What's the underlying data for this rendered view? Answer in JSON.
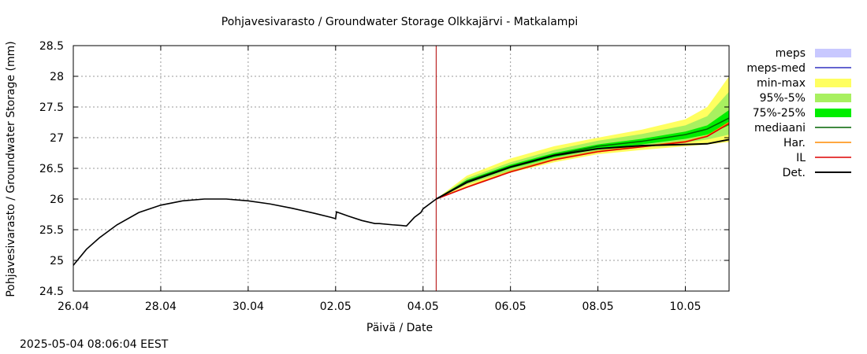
{
  "timestamp": "2025-05-04 08:06:04 EEST",
  "colors": {
    "meps": "#c8c8ff",
    "meps_med": "#3030c0",
    "minmax": "#ffff60",
    "p95_5": "#a8f060",
    "p75_25": "#00ee00",
    "mediaani": "#006400",
    "har": "#ff8c00",
    "il": "#dd0000",
    "det": "#000000",
    "now_line": "#b00000"
  },
  "chart_data": {
    "type": "line",
    "title": "Pohjavesivarasto / Groundwater Storage   Olkkajärvi - Matkalampi",
    "xlabel": "Päivä / Date",
    "ylabel": "Pohjavesivarasto / Groundwater Storage (mm)",
    "xlim": [
      0,
      15
    ],
    "ylim": [
      24.5,
      28.5
    ],
    "grid": true,
    "x_ticks": [
      {
        "x": 0,
        "label": "26.04"
      },
      {
        "x": 2,
        "label": "28.04"
      },
      {
        "x": 4,
        "label": "30.04"
      },
      {
        "x": 6,
        "label": "02.05"
      },
      {
        "x": 8,
        "label": "04.05"
      },
      {
        "x": 10,
        "label": "06.05"
      },
      {
        "x": 12,
        "label": "08.05"
      },
      {
        "x": 14,
        "label": "10.05"
      }
    ],
    "y_ticks": [
      24.5,
      25,
      25.5,
      26,
      26.5,
      27,
      27.5,
      28,
      28.5
    ],
    "y_tick_labels": [
      "24.5",
      "25",
      "25.5",
      "26",
      "26.5",
      "27",
      "27.5",
      "28",
      "28.5"
    ],
    "now_x": 8.3,
    "legend": {
      "position": "right",
      "entries": [
        {
          "key": "meps",
          "label": "meps",
          "style": "fill"
        },
        {
          "key": "meps_med",
          "label": "meps-med",
          "style": "line"
        },
        {
          "key": "minmax",
          "label": "min-max",
          "style": "fill"
        },
        {
          "key": "p95_5",
          "label": "95%-5%",
          "style": "fill"
        },
        {
          "key": "p75_25",
          "label": "75%-25%",
          "style": "fill"
        },
        {
          "key": "mediaani",
          "label": "mediaani",
          "style": "line"
        },
        {
          "key": "har",
          "label": "Har.",
          "style": "line"
        },
        {
          "key": "il",
          "label": "IL",
          "style": "line"
        },
        {
          "key": "det",
          "label": "Det.",
          "style": "line"
        }
      ]
    },
    "observed": {
      "x": [
        0,
        0.3,
        0.6,
        1.0,
        1.5,
        2.0,
        2.5,
        3.0,
        3.5,
        4.0,
        4.5,
        5.0,
        5.5,
        5.9,
        6.0,
        6.02,
        6.3,
        6.6,
        6.9,
        7.0,
        7.3,
        7.5,
        7.62,
        7.8,
        7.95,
        8.0,
        8.3
      ],
      "y": [
        24.92,
        25.18,
        25.37,
        25.58,
        25.78,
        25.9,
        25.97,
        26.0,
        26.0,
        25.97,
        25.92,
        25.85,
        25.77,
        25.7,
        25.68,
        25.79,
        25.72,
        25.65,
        25.6,
        25.6,
        25.58,
        25.57,
        25.56,
        25.7,
        25.78,
        25.84,
        26.0
      ]
    },
    "forecast_x": [
      8.3,
      9,
      10,
      11,
      12,
      13,
      14,
      14.5,
      15
    ],
    "bands": {
      "minmax": {
        "low": [
          26.0,
          26.22,
          26.43,
          26.6,
          26.73,
          26.8,
          26.86,
          26.89,
          26.93
        ],
        "high": [
          26.0,
          26.38,
          26.66,
          26.86,
          27.0,
          27.13,
          27.3,
          27.5,
          28.0
        ]
      },
      "p95_5": {
        "low": [
          26.0,
          26.24,
          26.46,
          26.63,
          26.77,
          26.84,
          26.92,
          26.97,
          27.05
        ],
        "high": [
          26.0,
          26.34,
          26.6,
          26.8,
          26.95,
          27.06,
          27.2,
          27.35,
          27.75
        ]
      },
      "p75_25": {
        "low": [
          26.0,
          26.26,
          26.5,
          26.68,
          26.82,
          26.89,
          26.98,
          27.05,
          27.2
        ],
        "high": [
          26.0,
          26.31,
          26.56,
          26.75,
          26.89,
          26.98,
          27.1,
          27.2,
          27.45
        ]
      }
    },
    "series": [
      {
        "key": "mediaani",
        "name": "mediaani",
        "x": [
          8.3,
          9,
          10,
          11,
          12,
          13,
          14,
          14.5,
          15
        ],
        "y": [
          26.0,
          26.29,
          26.53,
          26.72,
          26.86,
          26.94,
          27.05,
          27.14,
          27.32
        ]
      },
      {
        "key": "har",
        "name": "Har.",
        "x": [
          8.3,
          9,
          10,
          11,
          12,
          13,
          14,
          14.5,
          15
        ],
        "y": [
          26.0,
          26.2,
          26.45,
          26.65,
          26.78,
          26.86,
          26.94,
          27.03,
          27.25
        ]
      },
      {
        "key": "il",
        "name": "IL",
        "x": [
          8.3,
          9,
          10,
          11,
          12,
          13,
          14,
          14.5,
          15
        ],
        "y": [
          26.0,
          26.19,
          26.44,
          26.64,
          26.77,
          26.85,
          26.93,
          27.02,
          27.23
        ]
      },
      {
        "key": "det",
        "name": "Det.",
        "x": [
          8.3,
          9,
          10,
          11,
          12,
          13,
          14,
          14.5,
          15
        ],
        "y": [
          26.0,
          26.27,
          26.52,
          26.71,
          26.82,
          26.87,
          26.89,
          26.9,
          26.97
        ]
      }
    ]
  }
}
